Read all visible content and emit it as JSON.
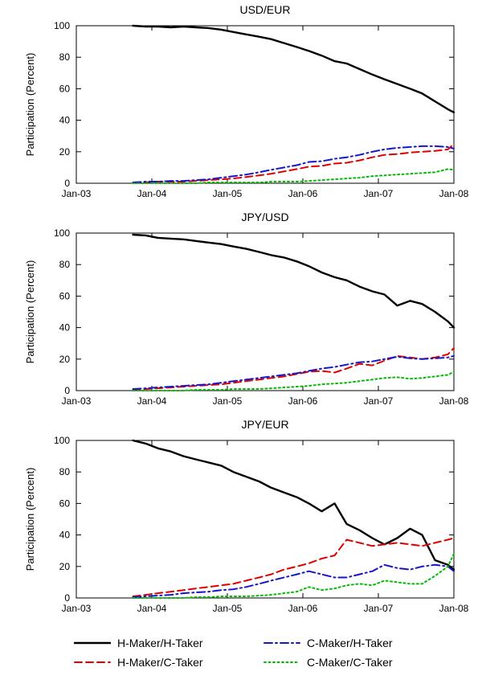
{
  "page": {
    "background": "#ffffff"
  },
  "axis": {
    "ylabel": "Participation (Percent)",
    "ylim": [
      0,
      100
    ],
    "yticks": [
      0,
      20,
      40,
      60,
      80,
      100
    ],
    "xlim": [
      2003,
      2008
    ],
    "xticks": [
      2003,
      2004,
      2005,
      2006,
      2007,
      2008
    ],
    "xticklabels": [
      "Jan-03",
      "Jan-04",
      "Jan-05",
      "Jan-06",
      "Jan-07",
      "Jan-08"
    ]
  },
  "legend": {
    "items": [
      {
        "label": "H-Maker/H-Taker",
        "color": "#000000",
        "dash": "solid"
      },
      {
        "label": "H-Maker/C-Taker",
        "color": "#e00000",
        "dash": "dashed"
      },
      {
        "label": "C-Maker/H-Taker",
        "color": "#1515cc",
        "dash": "dashdot"
      },
      {
        "label": "C-Maker/C-Taker",
        "color": "#00bb00",
        "dash": "dotted"
      }
    ]
  },
  "chart_data": [
    {
      "type": "line",
      "title": "USD/EUR",
      "xlabel": "",
      "ylabel": "Participation (Percent)",
      "ylim": [
        0,
        100
      ],
      "xlim": [
        2003,
        2008
      ],
      "legend_position": "below-figure",
      "grid": false,
      "x": [
        2003.75,
        2003.92,
        2004.08,
        2004.25,
        2004.42,
        2004.58,
        2004.75,
        2004.92,
        2005.08,
        2005.25,
        2005.42,
        2005.58,
        2005.75,
        2005.92,
        2006.08,
        2006.25,
        2006.42,
        2006.58,
        2006.75,
        2006.92,
        2007.08,
        2007.25,
        2007.42,
        2007.58,
        2007.75,
        2007.92,
        2008.0
      ],
      "series": [
        {
          "name": "H-Maker/H-Taker",
          "color": "#000000",
          "dash": "solid",
          "values": [
            100,
            99.5,
            99.5,
            99,
            99.5,
            99,
            98.5,
            97.5,
            96,
            94.5,
            93,
            91.5,
            89,
            86.5,
            84,
            81,
            77.5,
            76,
            72.5,
            69,
            66,
            63,
            60,
            57,
            52,
            47,
            45
          ]
        },
        {
          "name": "H-Maker/C-Taker",
          "color": "#e00000",
          "dash": "dashed",
          "values": [
            0.5,
            0.5,
            1,
            1,
            1,
            1.5,
            2,
            2.5,
            3,
            4,
            5,
            6,
            7.5,
            9,
            10.5,
            11,
            12.5,
            13,
            14.5,
            16.5,
            18,
            18.5,
            19.5,
            20,
            20.5,
            21.5,
            25
          ]
        },
        {
          "name": "C-Maker/H-Taker",
          "color": "#1515cc",
          "dash": "dashdot",
          "values": [
            0.5,
            1,
            1,
            1.5,
            1.5,
            2,
            2.5,
            3.5,
            4.5,
            5.5,
            7,
            8.5,
            10,
            11.5,
            13.5,
            14,
            15.5,
            16.5,
            18,
            20,
            21.5,
            22.5,
            23,
            23.5,
            23.5,
            23,
            22
          ]
        },
        {
          "name": "C-Maker/C-Taker",
          "color": "#00bb00",
          "dash": "dotted",
          "values": [
            0,
            0,
            0,
            0,
            0,
            0,
            0.5,
            0.5,
            0.5,
            0.5,
            0.5,
            1,
            1,
            1,
            1.5,
            2,
            2.5,
            3,
            3.5,
            4.5,
            5,
            5.5,
            6,
            6.5,
            7,
            9,
            8.5
          ]
        }
      ]
    },
    {
      "type": "line",
      "title": "JPY/USD",
      "xlabel": "",
      "ylabel": "Participation (Percent)",
      "ylim": [
        0,
        100
      ],
      "xlim": [
        2003,
        2008
      ],
      "legend_position": "below-figure",
      "grid": false,
      "x": [
        2003.75,
        2003.92,
        2004.08,
        2004.25,
        2004.42,
        2004.58,
        2004.75,
        2004.92,
        2005.08,
        2005.25,
        2005.42,
        2005.58,
        2005.75,
        2005.92,
        2006.08,
        2006.25,
        2006.42,
        2006.58,
        2006.75,
        2006.92,
        2007.08,
        2007.25,
        2007.42,
        2007.58,
        2007.75,
        2007.92,
        2008.0
      ],
      "series": [
        {
          "name": "H-Maker/H-Taker",
          "color": "#000000",
          "dash": "solid",
          "values": [
            99,
            98.5,
            97,
            96.5,
            96,
            95,
            94,
            93,
            91.5,
            90,
            88,
            86,
            84.5,
            82,
            79,
            75,
            72,
            70,
            66,
            63,
            61,
            54,
            57,
            55,
            50,
            44,
            40
          ]
        },
        {
          "name": "H-Maker/C-Taker",
          "color": "#e00000",
          "dash": "dashed",
          "values": [
            0.5,
            1,
            1.5,
            2,
            2.5,
            3,
            3.5,
            4,
            5,
            6,
            7,
            8,
            9,
            10.5,
            12,
            12.5,
            11.5,
            14,
            17,
            16,
            19,
            22,
            21,
            20,
            21,
            23,
            27
          ]
        },
        {
          "name": "C-Maker/H-Taker",
          "color": "#1515cc",
          "dash": "dashdot",
          "values": [
            1,
            1.5,
            2,
            2.5,
            3,
            3.5,
            4,
            5,
            6,
            7,
            8,
            9,
            10,
            11,
            12.5,
            14,
            15,
            16.5,
            18,
            18.5,
            20,
            21.5,
            20.5,
            20,
            20.5,
            21,
            22
          ]
        },
        {
          "name": "C-Maker/C-Taker",
          "color": "#00bb00",
          "dash": "dotted",
          "values": [
            0,
            0,
            0,
            0,
            0,
            0.5,
            0.5,
            0.5,
            1,
            1,
            1,
            1.5,
            2,
            2.5,
            3,
            4,
            4.5,
            5,
            6,
            7,
            8,
            8.5,
            7.5,
            8,
            9,
            10,
            12
          ]
        }
      ]
    },
    {
      "type": "line",
      "title": "JPY/EUR",
      "xlabel": "",
      "ylabel": "Participation (Percent)",
      "ylim": [
        0,
        100
      ],
      "xlim": [
        2003,
        2008
      ],
      "legend_position": "below-figure",
      "grid": false,
      "x": [
        2003.75,
        2003.92,
        2004.08,
        2004.25,
        2004.42,
        2004.58,
        2004.75,
        2004.92,
        2005.08,
        2005.25,
        2005.42,
        2005.58,
        2005.75,
        2005.92,
        2006.08,
        2006.25,
        2006.42,
        2006.58,
        2006.75,
        2006.92,
        2007.08,
        2007.25,
        2007.42,
        2007.58,
        2007.75,
        2007.92,
        2008.0
      ],
      "series": [
        {
          "name": "H-Maker/H-Taker",
          "color": "#000000",
          "dash": "solid",
          "values": [
            100,
            98,
            95,
            93,
            90,
            88,
            86,
            84,
            80,
            77,
            74,
            70,
            67,
            64,
            60,
            55,
            60,
            47,
            43,
            38,
            34,
            38,
            44,
            40,
            24,
            21,
            18
          ]
        },
        {
          "name": "H-Maker/C-Taker",
          "color": "#e00000",
          "dash": "dashed",
          "values": [
            1,
            2,
            3,
            4,
            5,
            6,
            7,
            8,
            9,
            11,
            13,
            15,
            18,
            20,
            22,
            25,
            27,
            37,
            35,
            33,
            34,
            35,
            34,
            33,
            35,
            37,
            38
          ]
        },
        {
          "name": "C-Maker/H-Taker",
          "color": "#1515cc",
          "dash": "dashdot",
          "values": [
            0.5,
            1,
            1.5,
            2,
            3,
            3.5,
            4,
            5,
            5.5,
            7,
            9,
            11,
            13,
            15,
            17,
            15,
            13,
            13,
            15,
            17,
            21,
            19,
            18,
            20,
            21,
            20,
            17
          ]
        },
        {
          "name": "C-Maker/C-Taker",
          "color": "#00bb00",
          "dash": "dotted",
          "values": [
            0,
            0,
            0,
            0,
            0,
            0.5,
            0.5,
            1,
            1,
            1,
            1.5,
            2,
            3,
            4,
            7,
            5,
            6,
            8,
            9,
            8,
            11,
            10,
            9,
            9,
            14,
            20,
            28
          ]
        }
      ]
    }
  ]
}
